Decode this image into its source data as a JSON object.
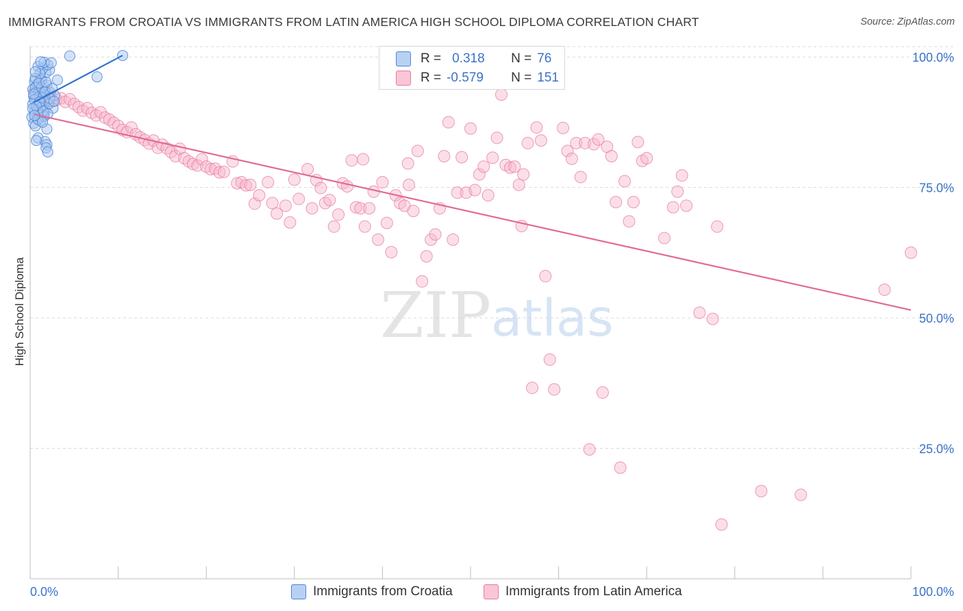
{
  "title": "IMMIGRANTS FROM CROATIA VS IMMIGRANTS FROM LATIN AMERICA HIGH SCHOOL DIPLOMA CORRELATION CHART",
  "source": "Source: ZipAtlas.com",
  "watermark": {
    "zip": "ZIP",
    "atlas": "atlas"
  },
  "colors": {
    "blue": "#4a86d8",
    "blue_fill": "#a9c6ef",
    "blue_line": "#2f72cc",
    "pink": "#e8799f",
    "pink_fill": "#f6b9cc",
    "pink_line": "#e06b94",
    "tick_label": "#3a72c9",
    "grid": "#d9d9d9"
  },
  "legend": {
    "rows": [
      {
        "r_label": "R =",
        "r_value": " 0.318",
        "n_label": "N =",
        "n_value": " 76"
      },
      {
        "r_label": "R =",
        "r_value": "-0.579",
        "n_label": "N =",
        "n_value": "151"
      }
    ]
  },
  "bottom_legend": {
    "croatia": "Immigrants from Croatia",
    "latam": "Immigrants from Latin America"
  },
  "chart_data": {
    "type": "scatter",
    "title": "IMMIGRANTS FROM CROATIA VS IMMIGRANTS FROM LATIN AMERICA HIGH SCHOOL DIPLOMA CORRELATION CHART",
    "xlabel": "",
    "ylabel": "High School Diploma",
    "xlim": [
      0,
      100
    ],
    "ylim": [
      0,
      102
    ],
    "x_tick_labels": [
      "0.0%",
      "100.0%"
    ],
    "y_ticks": [
      25,
      50,
      75,
      100
    ],
    "y_tick_labels": [
      "25.0%",
      "50.0%",
      "75.0%",
      "100.0%"
    ],
    "grid": true,
    "legend_position": "top-center",
    "series": [
      {
        "name": "Immigrants from Croatia",
        "r": 0.318,
        "n": 76,
        "trend": {
          "x": [
            0.4,
            10.5
          ],
          "y": [
            91.3,
            100.3
          ]
        },
        "points": [
          [
            0.5,
            95.3
          ],
          [
            0.8,
            94.8
          ],
          [
            1.2,
            96.0
          ],
          [
            1.5,
            94.5
          ],
          [
            0.3,
            93.8
          ],
          [
            0.6,
            93.2
          ],
          [
            1.0,
            93.6
          ],
          [
            1.4,
            93.0
          ],
          [
            1.8,
            92.8
          ],
          [
            0.4,
            92.4
          ],
          [
            0.7,
            92.0
          ],
          [
            1.1,
            92.5
          ],
          [
            1.6,
            91.7
          ],
          [
            2.0,
            91.2
          ],
          [
            0.3,
            91.0
          ],
          [
            0.9,
            90.8
          ],
          [
            1.3,
            90.5
          ],
          [
            1.7,
            89.8
          ],
          [
            0.5,
            89.5
          ],
          [
            1.0,
            89.2
          ],
          [
            1.5,
            88.9
          ],
          [
            0.2,
            88.5
          ],
          [
            0.8,
            88.2
          ],
          [
            1.2,
            87.8
          ],
          [
            0.4,
            87.3
          ],
          [
            0.6,
            86.8
          ],
          [
            1.8,
            97.0
          ],
          [
            2.2,
            97.5
          ],
          [
            1.4,
            97.8
          ],
          [
            0.9,
            98.2
          ],
          [
            2.0,
            98.5
          ],
          [
            1.6,
            99.0
          ],
          [
            2.4,
            98.9
          ],
          [
            4.5,
            100.2
          ],
          [
            1.3,
            95.6
          ],
          [
            2.6,
            90.2
          ],
          [
            0.9,
            84.5
          ],
          [
            1.7,
            83.8
          ],
          [
            1.9,
            83.2
          ],
          [
            1.8,
            82.6
          ],
          [
            2.0,
            81.8
          ],
          [
            0.7,
            84.0
          ],
          [
            1.9,
            86.2
          ],
          [
            7.6,
            96.2
          ],
          [
            3.1,
            95.6
          ],
          [
            1.1,
            96.8
          ],
          [
            0.6,
            95.9
          ],
          [
            1.9,
            94.6
          ],
          [
            2.3,
            93.2
          ],
          [
            2.8,
            92.6
          ],
          [
            1.4,
            92.2
          ],
          [
            0.5,
            91.8
          ],
          [
            2.1,
            91.0
          ],
          [
            1.2,
            90.2
          ],
          [
            0.8,
            89.9
          ],
          [
            1.6,
            88.6
          ],
          [
            0.6,
            94.2
          ],
          [
            1.3,
            94.1
          ],
          [
            0.4,
            92.9
          ],
          [
            1.7,
            93.3
          ],
          [
            2.2,
            92.1
          ],
          [
            1.1,
            91.4
          ],
          [
            0.7,
            90.6
          ],
          [
            1.5,
            89.6
          ],
          [
            2.0,
            89.1
          ],
          [
            0.9,
            88.0
          ],
          [
            0.3,
            90.1
          ],
          [
            1.0,
            95.0
          ],
          [
            0.6,
            97.2
          ],
          [
            1.2,
            99.1
          ],
          [
            10.5,
            100.3
          ],
          [
            2.5,
            94.0
          ],
          [
            1.8,
            95.2
          ],
          [
            0.5,
            88.8
          ],
          [
            1.4,
            87.5
          ],
          [
            2.7,
            91.5
          ]
        ]
      },
      {
        "name": "Immigrants from Latin America",
        "r": -0.579,
        "n": 151,
        "trend": {
          "x": [
            0.5,
            100
          ],
          "y": [
            89.0,
            51.5
          ]
        },
        "points": [
          [
            0.5,
            93.3
          ],
          [
            1.0,
            92.8
          ],
          [
            1.5,
            92.2
          ],
          [
            2.0,
            92.9
          ],
          [
            2.5,
            91.6
          ],
          [
            3.0,
            91.8
          ],
          [
            3.5,
            92.1
          ],
          [
            4.0,
            91.4
          ],
          [
            4.5,
            91.9
          ],
          [
            5.0,
            91.0
          ],
          [
            5.5,
            90.4
          ],
          [
            6.0,
            89.7
          ],
          [
            6.5,
            90.2
          ],
          [
            7.0,
            89.3
          ],
          [
            7.5,
            88.8
          ],
          [
            8.0,
            89.4
          ],
          [
            8.5,
            88.4
          ],
          [
            9.0,
            88.0
          ],
          [
            9.5,
            87.4
          ],
          [
            10.0,
            86.8
          ],
          [
            10.5,
            86.0
          ],
          [
            11.0,
            85.6
          ],
          [
            11.5,
            86.5
          ],
          [
            12.0,
            85.2
          ],
          [
            12.5,
            84.6
          ],
          [
            13.0,
            84.1
          ],
          [
            13.5,
            83.4
          ],
          [
            14.0,
            84.0
          ],
          [
            14.5,
            82.6
          ],
          [
            15.0,
            83.2
          ],
          [
            15.5,
            82.5
          ],
          [
            16.0,
            81.8
          ],
          [
            16.5,
            81.0
          ],
          [
            17.0,
            82.4
          ],
          [
            17.5,
            80.6
          ],
          [
            18.0,
            80.0
          ],
          [
            18.5,
            79.5
          ],
          [
            19.0,
            79.2
          ],
          [
            19.5,
            80.4
          ],
          [
            20.0,
            79.0
          ],
          [
            20.5,
            78.5
          ],
          [
            21.0,
            78.6
          ],
          [
            21.5,
            77.9
          ],
          [
            22.0,
            78.0
          ],
          [
            23.0,
            80.0
          ],
          [
            23.5,
            75.8
          ],
          [
            24.0,
            76.0
          ],
          [
            24.5,
            75.4
          ],
          [
            25.0,
            75.5
          ],
          [
            25.5,
            71.9
          ],
          [
            26.0,
            73.5
          ],
          [
            27.0,
            76.0
          ],
          [
            27.5,
            72.0
          ],
          [
            28.0,
            70.0
          ],
          [
            29.0,
            71.5
          ],
          [
            29.5,
            68.3
          ],
          [
            30.0,
            76.5
          ],
          [
            30.5,
            72.8
          ],
          [
            31.5,
            78.5
          ],
          [
            32.0,
            71.0
          ],
          [
            32.5,
            76.4
          ],
          [
            33.5,
            72.0
          ],
          [
            34.0,
            72.6
          ],
          [
            34.5,
            67.5
          ],
          [
            35.0,
            69.8
          ],
          [
            35.5,
            75.8
          ],
          [
            36.0,
            75.2
          ],
          [
            36.5,
            80.2
          ],
          [
            37.0,
            71.2
          ],
          [
            37.5,
            71.0
          ],
          [
            38.0,
            67.5
          ],
          [
            38.5,
            71.0
          ],
          [
            39.0,
            74.2
          ],
          [
            39.5,
            65.0
          ],
          [
            40.0,
            76.0
          ],
          [
            40.5,
            68.2
          ],
          [
            41.0,
            62.6
          ],
          [
            41.5,
            73.5
          ],
          [
            42.0,
            72.0
          ],
          [
            42.5,
            71.5
          ],
          [
            43.0,
            75.5
          ],
          [
            43.5,
            70.5
          ],
          [
            44.0,
            82.0
          ],
          [
            44.5,
            57.0
          ],
          [
            45.0,
            61.8
          ],
          [
            45.5,
            65.0
          ],
          [
            46.0,
            66.0
          ],
          [
            46.5,
            71.0
          ],
          [
            47.0,
            81.0
          ],
          [
            47.5,
            87.5
          ],
          [
            48.0,
            65.0
          ],
          [
            48.5,
            74.0
          ],
          [
            49.0,
            80.8
          ],
          [
            49.5,
            74.0
          ],
          [
            50.0,
            86.3
          ],
          [
            50.5,
            74.5
          ],
          [
            51.0,
            77.5
          ],
          [
            51.5,
            79.0
          ],
          [
            52.0,
            73.5
          ],
          [
            52.5,
            80.7
          ],
          [
            53.0,
            84.5
          ],
          [
            53.5,
            92.8
          ],
          [
            54.0,
            79.3
          ],
          [
            54.5,
            78.8
          ],
          [
            55.0,
            79.0
          ],
          [
            55.5,
            75.5
          ],
          [
            56.0,
            77.5
          ],
          [
            56.5,
            83.5
          ],
          [
            57.0,
            36.6
          ],
          [
            57.5,
            86.5
          ],
          [
            58.0,
            84.0
          ],
          [
            58.5,
            58.0
          ],
          [
            59.0,
            42.0
          ],
          [
            59.5,
            36.3
          ],
          [
            60.5,
            86.4
          ],
          [
            61.0,
            82.0
          ],
          [
            61.5,
            80.5
          ],
          [
            62.0,
            83.5
          ],
          [
            62.5,
            77.0
          ],
          [
            63.0,
            83.5
          ],
          [
            63.5,
            24.8
          ],
          [
            64.0,
            83.3
          ],
          [
            64.5,
            84.2
          ],
          [
            65.0,
            35.7
          ],
          [
            65.5,
            82.8
          ],
          [
            66.0,
            81.0
          ],
          [
            66.5,
            72.2
          ],
          [
            67.0,
            21.3
          ],
          [
            67.5,
            76.2
          ],
          [
            68.0,
            68.5
          ],
          [
            68.5,
            72.2
          ],
          [
            69.0,
            83.7
          ],
          [
            69.5,
            80.1
          ],
          [
            70.0,
            80.6
          ],
          [
            72.0,
            65.3
          ],
          [
            73.0,
            71.2
          ],
          [
            73.5,
            74.2
          ],
          [
            74.0,
            77.3
          ],
          [
            74.5,
            71.5
          ],
          [
            76.0,
            51.0
          ],
          [
            77.5,
            49.8
          ],
          [
            78.0,
            67.5
          ],
          [
            78.5,
            10.4
          ],
          [
            83.0,
            16.8
          ],
          [
            87.5,
            16.1
          ],
          [
            97.0,
            55.4
          ],
          [
            100.0,
            62.5
          ],
          [
            55.8,
            67.6
          ],
          [
            42.9,
            79.6
          ],
          [
            33.0,
            74.9
          ],
          [
            37.8,
            80.4
          ]
        ]
      }
    ]
  }
}
